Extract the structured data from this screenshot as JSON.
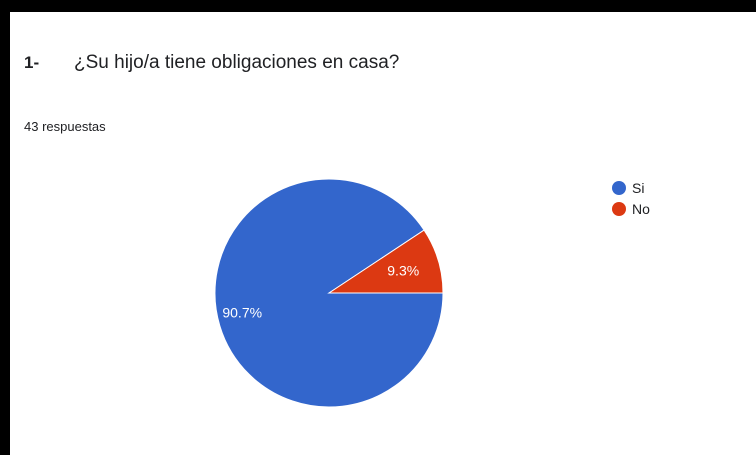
{
  "question": {
    "number": "1-",
    "text": "¿Su hijo/a tiene obligaciones en casa?"
  },
  "responses_label": "43 respuestas",
  "chart_data": {
    "type": "pie",
    "categories": [
      "Si",
      "No"
    ],
    "values": [
      90.7,
      9.3
    ],
    "labels": [
      "90.7%",
      "9.3%"
    ],
    "colors": [
      "#3366cc",
      "#dc3912"
    ],
    "legend_position": "right"
  }
}
